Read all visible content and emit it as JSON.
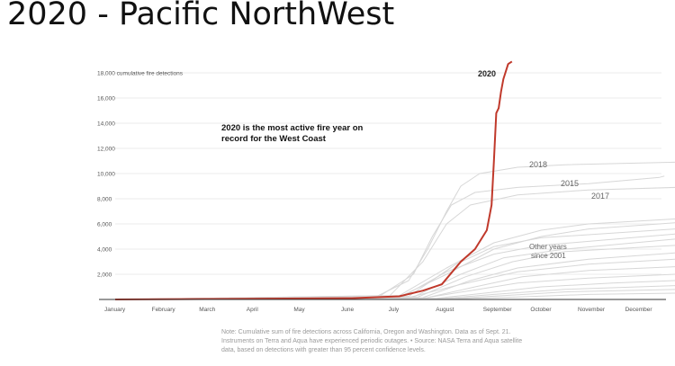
{
  "slide": {
    "title": "2020 - Pacific NorthWest"
  },
  "annotation": {
    "line1": "2020 is the most active fire year on",
    "line2": "record for the West Coast"
  },
  "labels": {
    "y2020": "2020",
    "y2018": "2018",
    "y2015": "2015",
    "y2017": "2017",
    "other1": "Other years",
    "other2": "since 2001"
  },
  "note": {
    "line1": "Note: Cumulative sum of fire detections across California, Oregon and Washington. Data as of Sept. 21.",
    "line2": "Instruments on Terra and Aqua have experienced periodic outages.  •  Source: NASA Terra and Aqua satellite",
    "line3": "data, based on detections with greater than 95 percent confidence levels."
  },
  "colors": {
    "highlight": "#c0392b",
    "other": "#d7d7d7",
    "axis": "#333333",
    "grid": "#e5e5e5"
  },
  "chart_data": {
    "type": "line",
    "title": "",
    "xlabel": "",
    "ylabel": "",
    "x_ticks": [
      "January",
      "February",
      "March",
      "April",
      "May",
      "June",
      "July",
      "August",
      "September",
      "October",
      "November",
      "December"
    ],
    "y_ticks": [
      2000,
      4000,
      6000,
      8000,
      10000,
      12000,
      14000,
      16000,
      18000
    ],
    "y_tick_labels": [
      "2,000",
      "4,000",
      "6,000",
      "8,000",
      "10,000",
      "12,000",
      "14,000",
      "16,000",
      "18,000 cumulative fire detections"
    ],
    "xlim": [
      1,
      12.85
    ],
    "ylim": [
      0,
      19000
    ],
    "grid": true,
    "x_unit": "month (1 = January 1, fractional = day within year)",
    "series": [
      {
        "name": "2020",
        "highlight": true,
        "points": [
          [
            1,
            0
          ],
          [
            6,
            100
          ],
          [
            7,
            250
          ],
          [
            7.5,
            700
          ],
          [
            7.9,
            1200
          ],
          [
            8.3,
            3000
          ],
          [
            8.6,
            4000
          ],
          [
            8.85,
            5500
          ],
          [
            8.95,
            7500
          ],
          [
            9.0,
            11000
          ],
          [
            9.05,
            14800
          ],
          [
            9.1,
            15200
          ],
          [
            9.15,
            16500
          ],
          [
            9.2,
            17500
          ],
          [
            9.3,
            18700
          ],
          [
            9.38,
            18900
          ]
        ]
      },
      {
        "name": "2018",
        "highlight": false,
        "points": [
          [
            1,
            0
          ],
          [
            6.5,
            200
          ],
          [
            7.2,
            1500
          ],
          [
            7.6,
            4000
          ],
          [
            8.0,
            7000
          ],
          [
            8.3,
            9000
          ],
          [
            8.7,
            10000
          ],
          [
            9.5,
            10500
          ],
          [
            10.5,
            10700
          ],
          [
            12.85,
            10900
          ]
        ]
      },
      {
        "name": "2015",
        "highlight": false,
        "points": [
          [
            1,
            0
          ],
          [
            6.6,
            300
          ],
          [
            7.3,
            2000
          ],
          [
            7.7,
            5000
          ],
          [
            8.1,
            7500
          ],
          [
            8.6,
            8500
          ],
          [
            9.5,
            8900
          ],
          [
            11,
            9200
          ],
          [
            12.5,
            9700
          ],
          [
            12.6,
            9800
          ]
        ]
      },
      {
        "name": "2017",
        "highlight": false,
        "points": [
          [
            1,
            0
          ],
          [
            6.8,
            300
          ],
          [
            7.5,
            3000
          ],
          [
            8.0,
            6000
          ],
          [
            8.5,
            7500
          ],
          [
            9.5,
            8300
          ],
          [
            11,
            8700
          ],
          [
            12.85,
            8900
          ]
        ]
      },
      {
        "name": "",
        "highlight": false,
        "points": [
          [
            1,
            0
          ],
          [
            7,
            300
          ],
          [
            8,
            2500
          ],
          [
            9,
            4500
          ],
          [
            10,
            5500
          ],
          [
            11,
            6000
          ],
          [
            12.85,
            6400
          ]
        ]
      },
      {
        "name": "",
        "highlight": false,
        "points": [
          [
            1,
            0
          ],
          [
            7,
            200
          ],
          [
            8,
            2000
          ],
          [
            9,
            4000
          ],
          [
            10,
            5000
          ],
          [
            11,
            5600
          ],
          [
            12.85,
            6100
          ]
        ]
      },
      {
        "name": "",
        "highlight": false,
        "points": [
          [
            1,
            0
          ],
          [
            7.2,
            250
          ],
          [
            8.2,
            2800
          ],
          [
            9,
            4200
          ],
          [
            10,
            4900
          ],
          [
            12.85,
            5600
          ]
        ]
      },
      {
        "name": "",
        "highlight": false,
        "points": [
          [
            1,
            0
          ],
          [
            7.1,
            300
          ],
          [
            8,
            2200
          ],
          [
            9,
            3600
          ],
          [
            10,
            4300
          ],
          [
            12.85,
            5200
          ]
        ]
      },
      {
        "name": "",
        "highlight": false,
        "points": [
          [
            1,
            0
          ],
          [
            7.3,
            200
          ],
          [
            8.3,
            2000
          ],
          [
            9.2,
            3300
          ],
          [
            10.5,
            4000
          ],
          [
            12.85,
            4800
          ]
        ]
      },
      {
        "name": "",
        "highlight": false,
        "points": [
          [
            1,
            0
          ],
          [
            7.4,
            200
          ],
          [
            8.4,
            1800
          ],
          [
            9.4,
            3000
          ],
          [
            10.5,
            3800
          ],
          [
            12.85,
            4300
          ]
        ]
      },
      {
        "name": "",
        "highlight": false,
        "points": [
          [
            1,
            0
          ],
          [
            7.5,
            150
          ],
          [
            8.5,
            1500
          ],
          [
            9.5,
            2500
          ],
          [
            11,
            3200
          ],
          [
            12.85,
            3700
          ]
        ]
      },
      {
        "name": "",
        "highlight": false,
        "points": [
          [
            1,
            0
          ],
          [
            7.2,
            150
          ],
          [
            8.3,
            1200
          ],
          [
            9.5,
            2200
          ],
          [
            11,
            2800
          ],
          [
            12.85,
            3200
          ]
        ]
      },
      {
        "name": "",
        "highlight": false,
        "points": [
          [
            1,
            0
          ],
          [
            7.6,
            150
          ],
          [
            8.6,
            1000
          ],
          [
            9.6,
            1800
          ],
          [
            11,
            2300
          ],
          [
            12.85,
            2600
          ]
        ]
      },
      {
        "name": "",
        "highlight": false,
        "points": [
          [
            1,
            0
          ],
          [
            7.5,
            100
          ],
          [
            8.5,
            700
          ],
          [
            9.5,
            1300
          ],
          [
            11,
            1700
          ],
          [
            12.85,
            2000
          ]
        ]
      },
      {
        "name": "",
        "highlight": false,
        "points": [
          [
            1,
            0
          ],
          [
            7.8,
            100
          ],
          [
            8.8,
            500
          ],
          [
            10,
            1000
          ],
          [
            11.5,
            1300
          ],
          [
            12.85,
            1500
          ]
        ]
      },
      {
        "name": "",
        "highlight": false,
        "points": [
          [
            1,
            0
          ],
          [
            7.9,
            80
          ],
          [
            9,
            400
          ],
          [
            10.5,
            800
          ],
          [
            12.85,
            1100
          ]
        ]
      },
      {
        "name": "",
        "highlight": false,
        "points": [
          [
            1,
            0
          ],
          [
            8,
            60
          ],
          [
            9.2,
            300
          ],
          [
            10.5,
            600
          ],
          [
            12.85,
            800
          ]
        ]
      },
      {
        "name": "",
        "highlight": false,
        "points": [
          [
            1,
            0
          ],
          [
            8.2,
            50
          ],
          [
            9.5,
            200
          ],
          [
            11,
            400
          ],
          [
            12.85,
            500
          ]
        ]
      }
    ]
  }
}
